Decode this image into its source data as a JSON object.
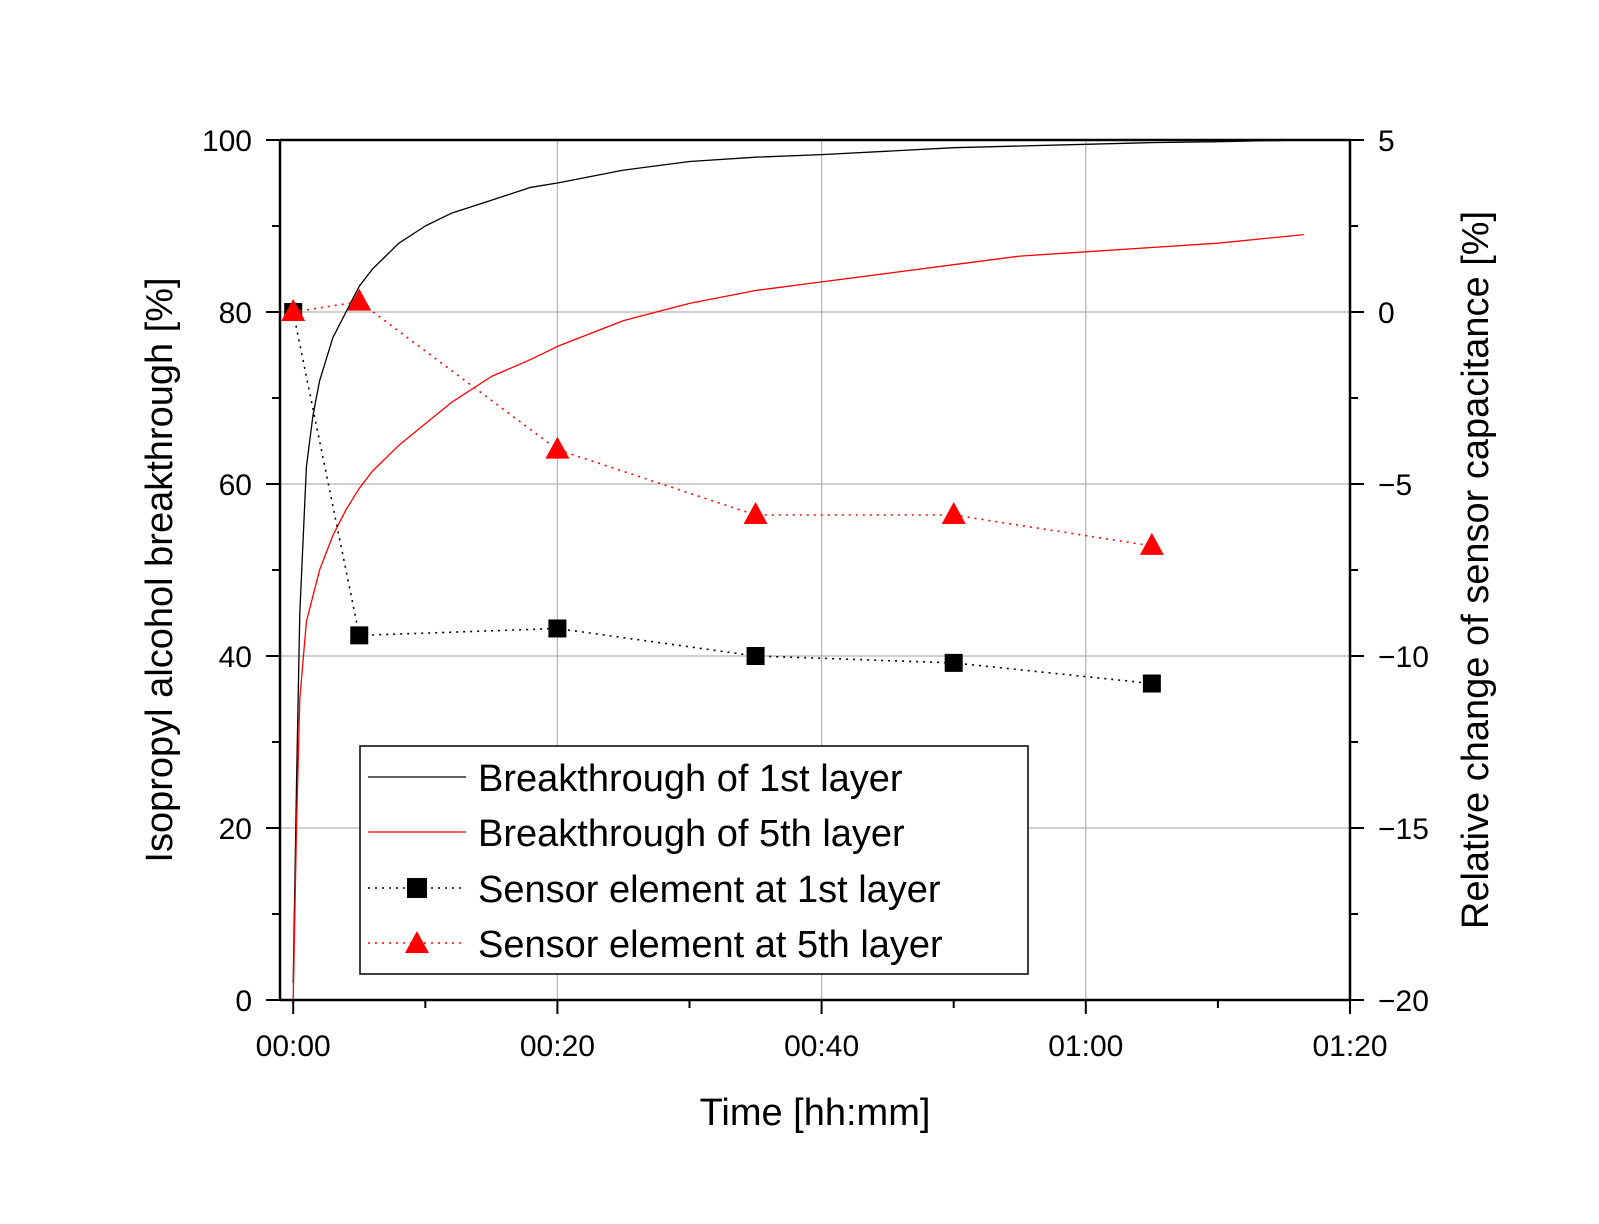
{
  "chart_data": {
    "type": "line",
    "xlabel": "Time [hh:mm]",
    "ylabel_left": "Isopropyl alcohol breakthrough [%]",
    "ylabel_right": "Relative change of sensor capacitance [%]",
    "x_unit": "minutes",
    "xlim": [
      -1,
      80
    ],
    "x_ticks": [
      0,
      20,
      40,
      60,
      80
    ],
    "x_tick_labels": [
      "00:00",
      "00:20",
      "00:40",
      "01:00",
      "01:20"
    ],
    "ylim_left": [
      0,
      100
    ],
    "y_left_ticks": [
      0,
      20,
      40,
      60,
      80,
      100
    ],
    "y_left_tick_labels": [
      "0",
      "20",
      "40",
      "60",
      "80",
      "100"
    ],
    "ylim_right": [
      -20,
      5
    ],
    "y_right_ticks": [
      -20,
      -15,
      -10,
      -5,
      0,
      5
    ],
    "y_right_tick_labels": [
      "−20",
      "−15",
      "−10",
      "−5",
      "0",
      "5"
    ],
    "grid": true,
    "legend_position": "lower-center",
    "series": [
      {
        "name": "Breakthrough of 1st layer",
        "axis": "left",
        "color": "#000000",
        "style": "solid",
        "marker": "none",
        "x": [
          0,
          0.25,
          0.5,
          1,
          1.5,
          2,
          3,
          4,
          5,
          6,
          7,
          8,
          10,
          12,
          15,
          18,
          20,
          25,
          30,
          35,
          40,
          45,
          50,
          55,
          60,
          65,
          70,
          76.5
        ],
        "y": [
          2,
          25,
          45,
          62,
          68,
          72,
          77,
          80,
          83,
          85,
          86.5,
          88,
          90,
          91.5,
          93,
          94.5,
          95,
          96.5,
          97.5,
          98,
          98.3,
          98.7,
          99.1,
          99.3,
          99.5,
          99.7,
          99.8,
          100
        ]
      },
      {
        "name": "Breakthrough of 5th layer",
        "axis": "left",
        "color": "#ff0000",
        "style": "solid",
        "marker": "none",
        "x": [
          0,
          0.25,
          0.5,
          1,
          2,
          3,
          4,
          5,
          6,
          8,
          10,
          12,
          15,
          18,
          20,
          25,
          30,
          35,
          40,
          45,
          50,
          55,
          60,
          65,
          70,
          76.5
        ],
        "y": [
          0,
          20,
          35,
          44,
          50,
          54,
          57,
          59.5,
          61.5,
          64.5,
          67,
          69.5,
          72.5,
          74.5,
          76,
          79,
          81,
          82.5,
          83.5,
          84.5,
          85.5,
          86.5,
          87,
          87.5,
          88,
          89
        ]
      },
      {
        "name": "Sensor element at 1st layer",
        "axis": "right",
        "color": "#000000",
        "style": "dotted",
        "marker": "square",
        "x": [
          0,
          5,
          20,
          35,
          50,
          65
        ],
        "y": [
          0,
          -9.4,
          -9.2,
          -10.0,
          -10.2,
          -10.8
        ]
      },
      {
        "name": "Sensor element at 5th layer",
        "axis": "right",
        "color": "#ff0000",
        "style": "dotted",
        "marker": "triangle",
        "x": [
          0,
          5,
          20,
          35,
          50,
          65
        ],
        "y": [
          0,
          0.3,
          -4.0,
          -5.9,
          -5.9,
          -6.8
        ]
      }
    ]
  }
}
